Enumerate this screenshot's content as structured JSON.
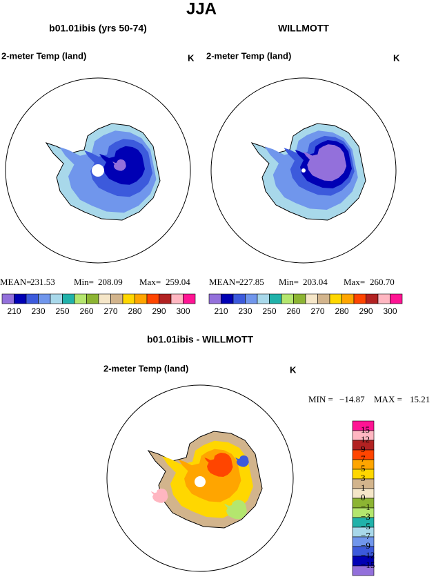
{
  "title": "JJA",
  "panels": [
    {
      "title": "b01.01ibis (yrs 50-74)",
      "variable": "2-meter Temp (land)",
      "units": "K",
      "stats": [
        {
          "label": "MEAN=",
          "value": "231.53"
        },
        {
          "label": "Min=",
          "value": "208.09"
        },
        {
          "label": "Max=",
          "value": "259.04"
        }
      ]
    },
    {
      "title": "WILLMOTT",
      "variable": "2-meter Temp (land)",
      "units": "K",
      "stats": [
        {
          "label": "MEAN=",
          "value": "227.85"
        },
        {
          "label": "Min=",
          "value": "203.04"
        },
        {
          "label": "Max=",
          "value": "260.70"
        }
      ]
    }
  ],
  "colorbar": {
    "colors": [
      "#9370db",
      "#0000b4",
      "#3c5adc",
      "#7096ec",
      "#a8d8ea",
      "#20b2aa",
      "#b4e66e",
      "#8cb432",
      "#f5e6c8",
      "#d2b48c",
      "#ffd700",
      "#ffa500",
      "#ff4500",
      "#b22222",
      "#ffb6c1",
      "#ff1493"
    ],
    "labels": [
      210,
      230,
      250,
      260,
      270,
      280,
      290,
      300
    ]
  },
  "difference": {
    "title": "b01.01ibis - WILLMOTT",
    "variable": "2-meter Temp (land)",
    "units": "K",
    "stats": [
      {
        "label": "MIN =",
        "value": "−14.87"
      },
      {
        "label": "MAX =",
        "value": "15.21"
      }
    ],
    "colors": [
      "#ff1493",
      "#ffb6c1",
      "#b22222",
      "#ff4500",
      "#ffa500",
      "#ffd700",
      "#d2b48c",
      "#f5e6c8",
      "#8cb432",
      "#b4e66e",
      "#20b2aa",
      "#a8d8ea",
      "#7096ec",
      "#3c5adc",
      "#0000b4",
      "#9370db"
    ],
    "labels": [
      "15",
      "12",
      "9",
      "7",
      "5",
      "3",
      "1",
      "0",
      "−1",
      "−3",
      "−5",
      "−7",
      "−9",
      "−12",
      "−15"
    ]
  }
}
